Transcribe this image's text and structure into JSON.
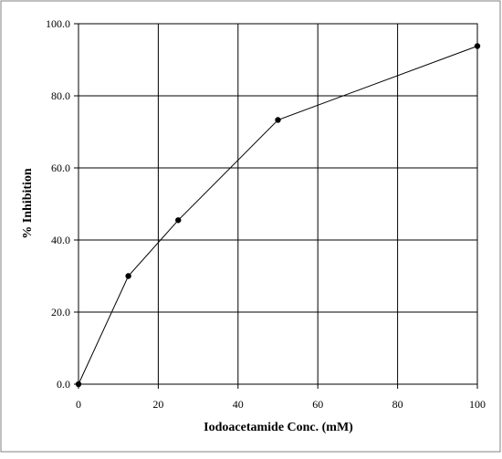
{
  "chart_data": {
    "type": "line",
    "title": "",
    "xlabel": "Iodoacetamide Conc. (mM)",
    "ylabel": "% Inhibition",
    "xlim": [
      0,
      100
    ],
    "ylim": [
      0,
      100
    ],
    "x_ticks": [
      0,
      20,
      40,
      60,
      80,
      100
    ],
    "x_tick_labels": [
      "0",
      "20",
      "40",
      "60",
      "80",
      "100"
    ],
    "y_ticks": [
      0,
      20,
      40,
      60,
      80,
      100
    ],
    "y_tick_labels": [
      "0.0",
      "20.0",
      "40.0",
      "60.0",
      "80.0",
      "100.0"
    ],
    "grid": true,
    "legend": "none",
    "series": [
      {
        "x": [
          0,
          12.5,
          25,
          50,
          100
        ],
        "y": [
          0,
          30,
          45.5,
          73.3,
          93.8
        ],
        "color": "#000000",
        "marker": "circle"
      }
    ]
  }
}
